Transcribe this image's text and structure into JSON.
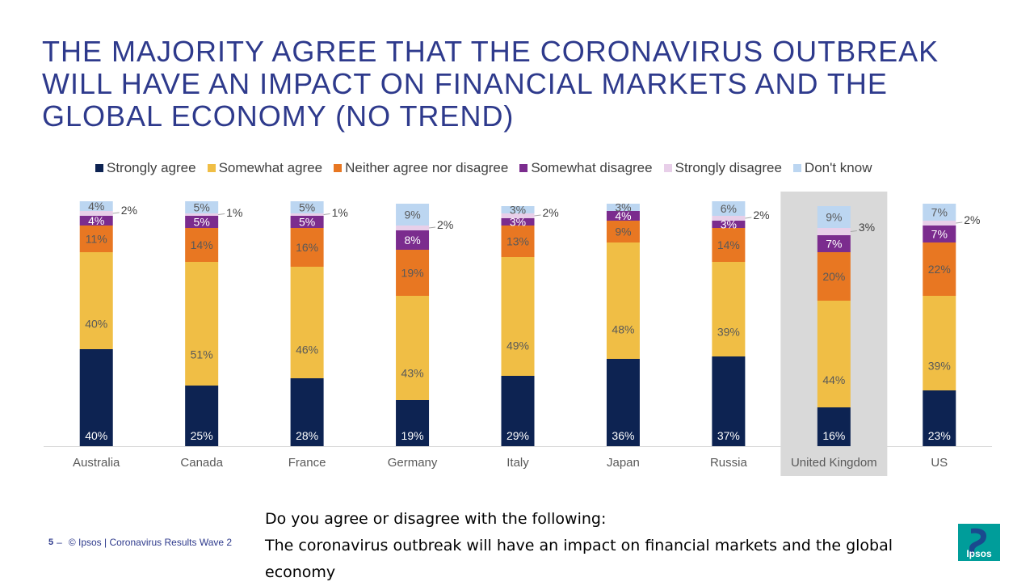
{
  "title_lines": [
    "THE MAJORITY AGREE THAT THE CORONAVIRUS OUTBREAK",
    "WILL HAVE AN IMPACT ON FINANCIAL MARKETS AND THE",
    "GLOBAL ECONOMY (NO TREND)"
  ],
  "question_lines": [
    "Do you agree or disagree with the following:",
    "The coronavirus outbreak will have an impact on financial markets and the global",
    "economy"
  ],
  "footer": {
    "page_number": "5",
    "dash": "–",
    "source": "© Ipsos | Coronavirus Results Wave 2"
  },
  "logo": {
    "text": "Ipsos",
    "colors": [
      "#009d9a",
      "#1f3c8c"
    ]
  },
  "chart_data": {
    "type": "bar",
    "stacked": true,
    "categories": [
      "Australia",
      "Canada",
      "France",
      "Germany",
      "Italy",
      "Japan",
      "Russia",
      "United Kingdom",
      "US"
    ],
    "highlight_category": "United Kingdom",
    "highlight_color": "#d9d9d9",
    "ylim": [
      0,
      100
    ],
    "legend_position": "top",
    "series": [
      {
        "name": "Strongly agree",
        "color": "#0d2352",
        "label_color": "#ffffff",
        "values": [
          40,
          25,
          28,
          19,
          29,
          36,
          37,
          16,
          23
        ]
      },
      {
        "name": "Somewhat agree",
        "color": "#f0be45",
        "label_color": "#595959",
        "values": [
          40,
          51,
          46,
          43,
          49,
          48,
          39,
          44,
          39
        ]
      },
      {
        "name": "Neither agree nor disagree",
        "color": "#e87722",
        "label_color": "#595959",
        "values": [
          11,
          14,
          16,
          19,
          13,
          9,
          14,
          20,
          22
        ]
      },
      {
        "name": "Somewhat disagree",
        "color": "#7b2c8e",
        "label_color": "#ffffff",
        "values": [
          4,
          5,
          5,
          8,
          3,
          4,
          3,
          7,
          7
        ]
      },
      {
        "name": "Strongly disagree",
        "color": "#e8cfe9",
        "label_color": "#595959",
        "values": [
          2,
          1,
          1,
          2,
          2,
          0,
          2,
          3,
          2
        ]
      },
      {
        "name": "Don't know",
        "color": "#bcd6f1",
        "label_color": "#595959",
        "values": [
          4,
          5,
          5,
          9,
          3,
          3,
          6,
          9,
          7
        ]
      }
    ],
    "value_labels": [
      [
        "40%",
        "25%",
        "28%",
        "19%",
        "29%",
        "36%",
        "37%",
        "16%",
        "23%"
      ],
      [
        "40%",
        "51%",
        "46%",
        "43%",
        "49%",
        "48%",
        "39%",
        "44%",
        "39%"
      ],
      [
        "11%",
        "14%",
        "16%",
        "19%",
        "13%",
        "9%",
        "14%",
        "20%",
        "22%"
      ],
      [
        "4%",
        "5%",
        "5%",
        "8%",
        "3%",
        "4%",
        "3%",
        "7%",
        "7%"
      ],
      [
        "2%",
        "1%",
        "1%",
        "2%",
        "2%",
        "",
        "2%",
        "3%",
        "2%"
      ],
      [
        "4%",
        "5%",
        "5%",
        "9%",
        "3%",
        "3%",
        "6%",
        "9%",
        "7%"
      ]
    ]
  }
}
